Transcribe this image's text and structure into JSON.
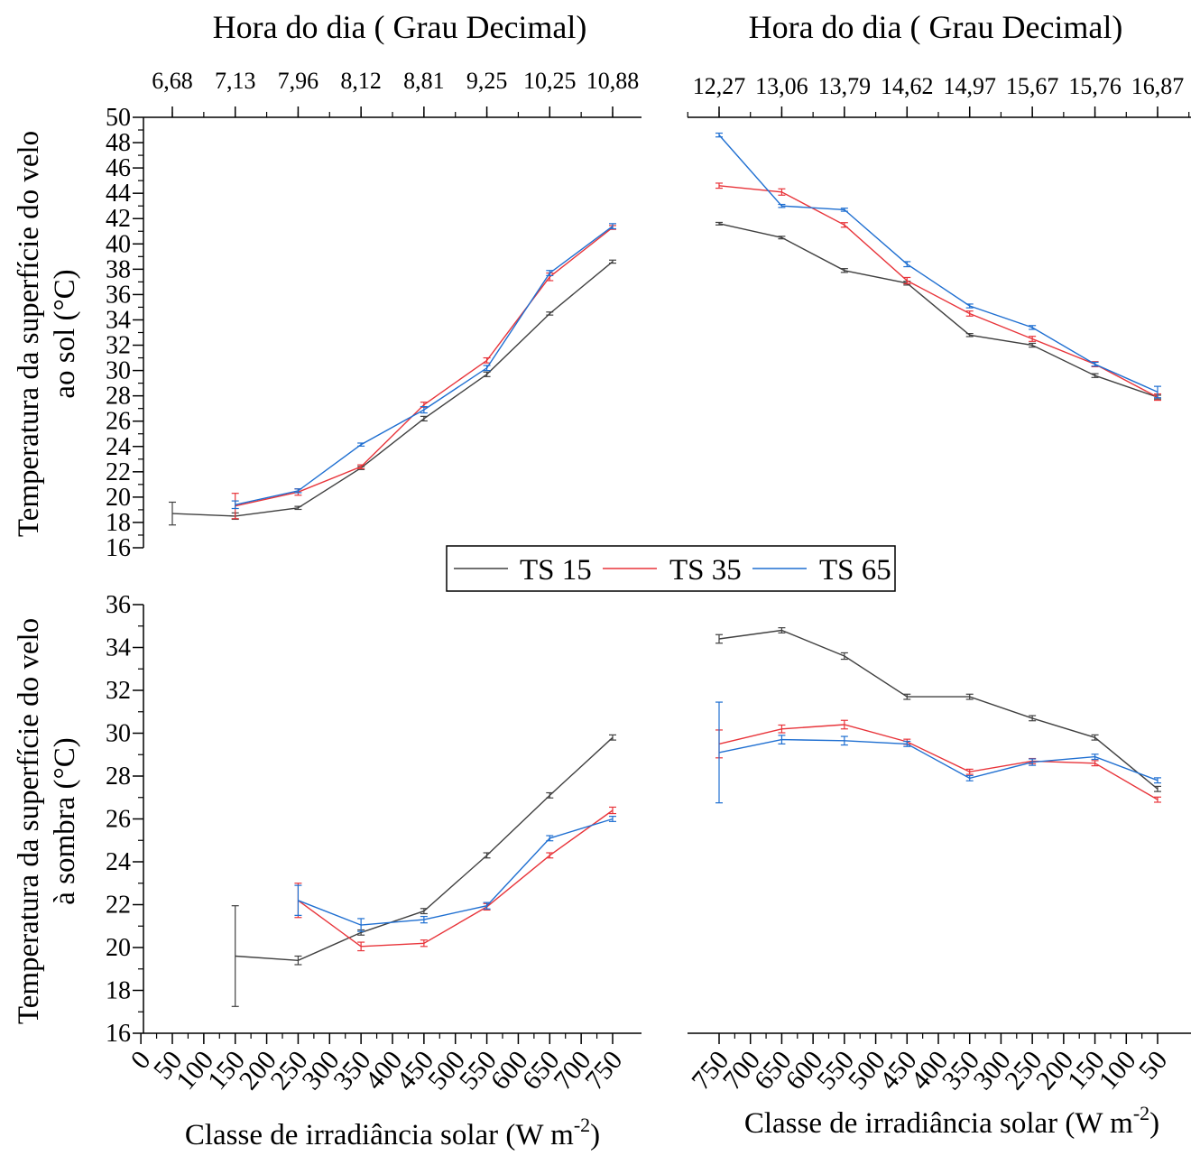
{
  "figure": {
    "top_xlabel": "Hora do dia ( Grau Decimal)",
    "ylabel_top_line1": "Temperatura da superfície do velo",
    "ylabel_top_line2": "ao sol (°C)",
    "ylabel_bottom_line1": "Temperatura da superfície do velo",
    "ylabel_bottom_line2": "à sombra (°C)",
    "bottom_xlabel_main": "Classe de irradiância solar (W m",
    "bottom_xlabel_sup": "-2",
    "bottom_xlabel_end": ")",
    "hours_morning": [
      "6,68",
      "7,13",
      "7,96",
      "8,12",
      "8,81",
      "9,25",
      "10,25",
      "10,88"
    ],
    "hours_afternoon": [
      "12,27",
      "13,06",
      "13,79",
      "14,62",
      "14,97",
      "15,67",
      "15,76",
      "16,87"
    ],
    "irr_left": [
      "0",
      "50",
      "100",
      "150",
      "200",
      "250",
      "300",
      "350",
      "400",
      "450",
      "500",
      "550",
      "600",
      "650",
      "700",
      "750"
    ],
    "irr_right": [
      "750",
      "700",
      "650",
      "600",
      "550",
      "500",
      "450",
      "400",
      "350",
      "300",
      "250",
      "200",
      "150",
      "100",
      "50"
    ],
    "legend": [
      "TS 15",
      "TS 35",
      "TS 65"
    ]
  },
  "chart_data": [
    {
      "type": "line",
      "panel": "top-left",
      "ylim": [
        16,
        50
      ],
      "x": [
        50,
        150,
        250,
        350,
        450,
        550,
        650,
        750
      ],
      "y_ticks": [
        16,
        18,
        20,
        22,
        24,
        26,
        28,
        30,
        32,
        34,
        36,
        38,
        40,
        42,
        44,
        46,
        48,
        50
      ],
      "series": [
        {
          "name": "TS 15",
          "color": "#404040",
          "values": [
            18.7,
            18.5,
            19.15,
            22.3,
            26.2,
            29.7,
            34.5,
            38.6
          ],
          "err": [
            0.9,
            0.25,
            0.12,
            0.12,
            0.18,
            0.18,
            0.12,
            0.12
          ]
        },
        {
          "name": "TS 35",
          "color": "#e8343a",
          "values": [
            null,
            19.3,
            20.4,
            22.4,
            27.3,
            30.8,
            37.4,
            41.3
          ],
          "err": [
            0,
            1.0,
            0.25,
            0.15,
            0.2,
            0.2,
            0.3,
            0.15
          ]
        },
        {
          "name": "TS 65",
          "color": "#1f6fd1",
          "values": [
            null,
            19.4,
            20.5,
            24.15,
            26.9,
            30.2,
            37.7,
            41.4
          ],
          "err": [
            0,
            0.3,
            0.15,
            0.12,
            0.25,
            0.2,
            0.2,
            0.2
          ]
        }
      ]
    },
    {
      "type": "line",
      "panel": "top-right",
      "ylim": [
        16,
        50
      ],
      "x": [
        750,
        650,
        550,
        450,
        350,
        250,
        150,
        50
      ],
      "series": [
        {
          "name": "TS 15",
          "color": "#404040",
          "values": [
            41.6,
            40.5,
            37.9,
            36.9,
            32.8,
            32.0,
            29.6,
            27.9
          ],
          "err": [
            0.1,
            0.1,
            0.15,
            0.15,
            0.12,
            0.15,
            0.15,
            0.15
          ]
        },
        {
          "name": "TS 35",
          "color": "#e8343a",
          "values": [
            44.6,
            44.1,
            41.5,
            37.1,
            34.5,
            32.5,
            30.5,
            27.9
          ],
          "err": [
            0.2,
            0.25,
            0.18,
            0.25,
            0.2,
            0.2,
            0.2,
            0.25
          ]
        },
        {
          "name": "TS 65",
          "color": "#1f6fd1",
          "values": [
            48.6,
            43.0,
            42.7,
            38.4,
            35.1,
            33.4,
            30.5,
            28.3
          ],
          "err": [
            0.15,
            0.12,
            0.12,
            0.2,
            0.15,
            0.15,
            0.15,
            0.45
          ]
        }
      ]
    },
    {
      "type": "line",
      "panel": "bottom-left",
      "ylim": [
        16,
        36
      ],
      "x": [
        50,
        150,
        250,
        350,
        450,
        550,
        650,
        750
      ],
      "y_ticks": [
        16,
        18,
        20,
        22,
        24,
        26,
        28,
        30,
        32,
        34,
        36
      ],
      "series": [
        {
          "name": "TS 15",
          "color": "#404040",
          "values": [
            null,
            19.6,
            19.4,
            20.7,
            21.7,
            24.3,
            27.1,
            29.8
          ],
          "err": [
            0,
            2.35,
            0.2,
            0.12,
            0.12,
            0.12,
            0.12,
            0.12
          ]
        },
        {
          "name": "TS 35",
          "color": "#e8343a",
          "values": [
            null,
            null,
            22.2,
            20.05,
            20.2,
            21.9,
            24.3,
            26.4
          ],
          "err": [
            0,
            0,
            0.8,
            0.2,
            0.15,
            0.15,
            0.12,
            0.15
          ]
        },
        {
          "name": "TS 65",
          "color": "#1f6fd1",
          "values": [
            null,
            null,
            22.2,
            21.05,
            21.3,
            21.95,
            25.1,
            26.0
          ],
          "err": [
            0,
            0,
            0.7,
            0.3,
            0.15,
            0.15,
            0.12,
            0.12
          ]
        }
      ]
    },
    {
      "type": "line",
      "panel": "bottom-right",
      "ylim": [
        16,
        36
      ],
      "x": [
        750,
        650,
        550,
        450,
        350,
        250,
        150,
        50
      ],
      "series": [
        {
          "name": "TS 15",
          "color": "#404040",
          "values": [
            34.4,
            34.8,
            33.6,
            31.7,
            31.7,
            30.7,
            29.8,
            27.4
          ],
          "err": [
            0.2,
            0.12,
            0.15,
            0.12,
            0.12,
            0.12,
            0.12,
            0.12
          ]
        },
        {
          "name": "TS 35",
          "color": "#e8343a",
          "values": [
            29.5,
            30.2,
            30.4,
            29.6,
            28.2,
            28.7,
            28.6,
            26.9
          ],
          "err": [
            0.65,
            0.18,
            0.2,
            0.12,
            0.12,
            0.12,
            0.12,
            0.12
          ]
        },
        {
          "name": "TS 65",
          "color": "#1f6fd1",
          "values": [
            29.1,
            29.7,
            29.65,
            29.5,
            27.9,
            28.65,
            28.9,
            27.8
          ],
          "err": [
            2.35,
            0.2,
            0.2,
            0.12,
            0.12,
            0.15,
            0.12,
            0.12
          ]
        }
      ]
    }
  ]
}
